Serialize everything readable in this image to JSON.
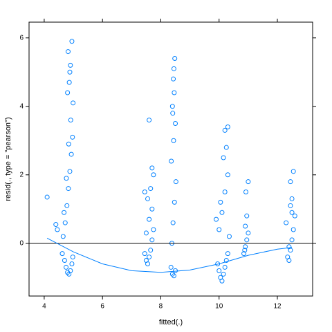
{
  "chart_data": {
    "type": "scatter",
    "x_label": "fitted(.)",
    "y_label": "resid(., type = \"pearson\")",
    "xlim": [
      3.48,
      13.21
    ],
    "ylim": [
      -1.54,
      6.46
    ],
    "xticks": [
      4,
      6,
      8,
      10,
      12
    ],
    "yticks": [
      0,
      2,
      4,
      6
    ],
    "hline": 0,
    "color": "#0080ff",
    "x": [
      4.62,
      4.7,
      4.75,
      4.8,
      4.85,
      4.9,
      4.95,
      4.98,
      4.65,
      4.72,
      4.78,
      4.83,
      4.88,
      4.93,
      4.97,
      4.68,
      4.76,
      4.84,
      4.91,
      4.99,
      4.8,
      4.86,
      4.9,
      4.95,
      4.82,
      4.88,
      4.1,
      4.4,
      4.45,
      7.45,
      7.5,
      7.55,
      7.6,
      7.65,
      7.7,
      7.75,
      7.5,
      7.6,
      7.7,
      7.55,
      7.65,
      7.7,
      7.6,
      7.75,
      7.45,
      8.35,
      8.4,
      8.45,
      8.5,
      8.38,
      8.42,
      8.47,
      8.52,
      8.36,
      8.44,
      8.5,
      8.4,
      8.46,
      8.43,
      8.48,
      8.41,
      8.45,
      9.95,
      10.0,
      10.05,
      10.1,
      10.15,
      10.2,
      10.25,
      10.3,
      10.35,
      10.0,
      10.1,
      10.2,
      10.3,
      10.05,
      10.15,
      10.25,
      10.2,
      10.3,
      9.9,
      10.85,
      10.9,
      10.95,
      11.0,
      10.9,
      10.95,
      10.88,
      11.0,
      10.92,
      12.35,
      12.4,
      12.45,
      12.5,
      12.55,
      12.6,
      12.45,
      12.5,
      12.55,
      12.3,
      12.4,
      12.5,
      12.45
    ],
    "y": [
      -0.3,
      -0.5,
      -0.7,
      -0.85,
      -0.9,
      -0.8,
      -0.6,
      -0.4,
      0.2,
      0.6,
      1.1,
      1.6,
      2.1,
      2.6,
      3.1,
      0.9,
      1.9,
      2.9,
      3.6,
      4.1,
      4.4,
      4.7,
      5.2,
      5.9,
      5.6,
      5.0,
      1.35,
      0.55,
      0.4,
      -0.3,
      -0.5,
      -0.6,
      -0.4,
      -0.2,
      0.1,
      0.4,
      0.3,
      0.7,
      1.0,
      1.3,
      1.6,
      2.2,
      3.6,
      2.0,
      1.5,
      -0.7,
      -0.9,
      -0.95,
      -0.8,
      0.0,
      0.6,
      1.2,
      1.8,
      2.4,
      3.0,
      3.5,
      4.0,
      4.4,
      4.8,
      5.4,
      3.8,
      5.1,
      -0.6,
      -0.8,
      -1.0,
      -1.1,
      -0.9,
      -0.7,
      -0.5,
      -0.3,
      0.2,
      0.4,
      0.9,
      1.5,
      2.0,
      1.2,
      2.5,
      2.8,
      3.3,
      3.4,
      0.7,
      -0.3,
      -0.1,
      0.1,
      0.3,
      0.5,
      0.8,
      -0.2,
      1.8,
      1.5,
      -0.4,
      -0.5,
      -0.2,
      0.1,
      0.4,
      0.8,
      1.1,
      1.3,
      2.1,
      0.6,
      -0.1,
      0.9,
      1.8
    ],
    "smooth": {
      "color": "#0080ff",
      "x": [
        4.1,
        5,
        6,
        7,
        8,
        9,
        10,
        11,
        12,
        12.5
      ],
      "y": [
        0.15,
        -0.25,
        -0.6,
        -0.8,
        -0.85,
        -0.78,
        -0.6,
        -0.35,
        -0.17,
        -0.12
      ]
    }
  }
}
